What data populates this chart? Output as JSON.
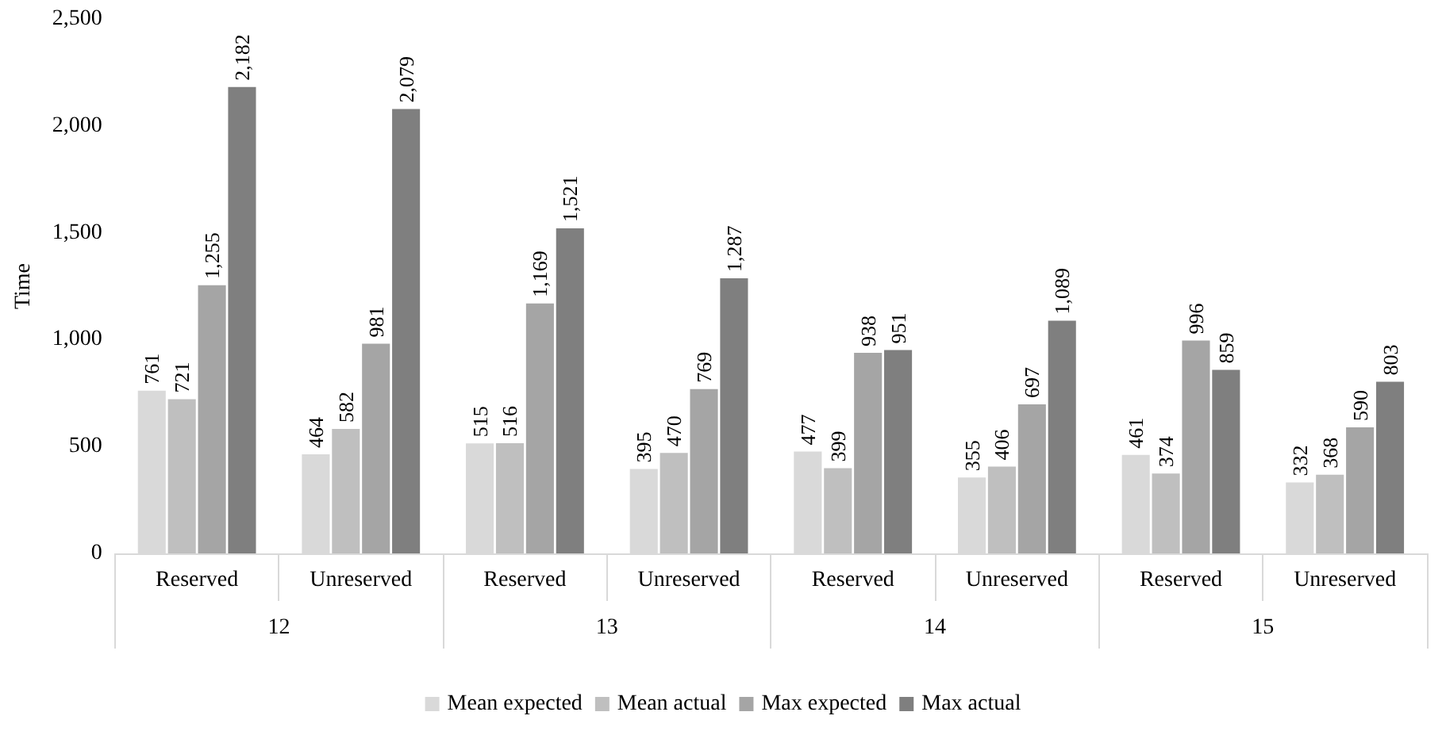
{
  "chart_data": {
    "type": "bar",
    "ylabel": "Time",
    "categories": [
      "Reserved",
      "Unreserved",
      "Reserved",
      "Unreserved",
      "Reserved",
      "Unreserved",
      "Reserved",
      "Unreserved"
    ],
    "annotations": [
      "12",
      "13",
      "14",
      "15"
    ],
    "series": [
      {
        "name": "Mean expected",
        "color": "#d9d9d9",
        "values": [
          761,
          464,
          515,
          395,
          477,
          355,
          461,
          332
        ],
        "value_labels": [
          "761",
          "464",
          "515",
          "395",
          "477",
          "355",
          "461",
          "332"
        ]
      },
      {
        "name": "Mean actual",
        "color": "#bfbfbf",
        "values": [
          721,
          582,
          516,
          470,
          399,
          406,
          374,
          368
        ],
        "value_labels": [
          "721",
          "582",
          "516",
          "470",
          "399",
          "406",
          "374",
          "368"
        ]
      },
      {
        "name": "Max expected",
        "color": "#a5a5a5",
        "values": [
          1255,
          981,
          1169,
          769,
          938,
          697,
          996,
          590
        ],
        "value_labels": [
          "1,255",
          "981",
          "1,169",
          "769",
          "938",
          "697",
          "996",
          "590"
        ]
      },
      {
        "name": "Max actual",
        "color": "#7f7f7f",
        "values": [
          2182,
          2079,
          1521,
          1287,
          951,
          1089,
          859,
          803
        ],
        "value_labels": [
          "2,182",
          "2,079",
          "1,521",
          "1,287",
          "951",
          "1,089",
          "859",
          "803"
        ]
      }
    ],
    "ylim": [
      0,
      2500
    ],
    "yticks": [
      0,
      500,
      {
        "value": 1000,
        "label": "1,000"
      },
      {
        "value": 1500,
        "label": "1,500"
      },
      {
        "value": 2000,
        "label": "2,000"
      },
      {
        "value": 2500,
        "label": "2,500"
      }
    ],
    "grid": false,
    "legend": "bottom"
  }
}
